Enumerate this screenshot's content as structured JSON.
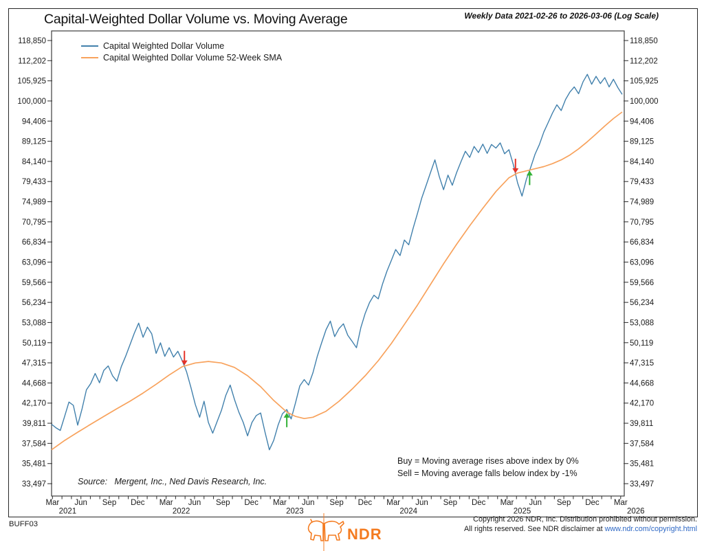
{
  "header": {
    "title": "Capital-Weighted Dollar Volume vs. Moving Average",
    "subtitle": "Weekly Data 2021-02-26 to 2026-03-06 (Log Scale)"
  },
  "legend": [
    {
      "label": "Capital Weighted Dollar Volume",
      "color": "#4180ac"
    },
    {
      "label": "Capital Weighted Dollar Volume 52-Week SMA",
      "color": "#f8a25c"
    }
  ],
  "annotations": {
    "source": "Source:   Mergent, Inc., Ned Davis Research, Inc.",
    "buy_rule": "Buy = Moving average rises above index by 0%",
    "sell_rule": "Sell = Moving average falls below index by -1%"
  },
  "footer": {
    "doc_code": "BUFF03",
    "logo_text": "NDR",
    "copyright_line1": "Copyright 2026 NDR, Inc. Distribution prohibited without permission.",
    "copyright_line2_prefix": "All rights reserved. See NDR disclaimer at ",
    "copyright_link": "www.ndr.com/copyright.html"
  },
  "colors": {
    "index_line": "#4180ac",
    "sma_line": "#f8a25c",
    "buy_arrow": "#31b135",
    "sell_arrow": "#e53228",
    "ndr_orange": "#f47b20",
    "link_blue": "#2e68c5",
    "axis": "#3c3c3c",
    "text": "#1a1a1a"
  },
  "chart_data": {
    "type": "line",
    "title": "Capital-Weighted Dollar Volume vs. Moving Average",
    "log_scale": true,
    "x_unit": "weeks since 2021-02-26",
    "x_range_weeks": [
      0,
      262
    ],
    "y_ticks": [
      118850,
      112202,
      105925,
      100000,
      94406,
      89125,
      84140,
      79433,
      74989,
      70795,
      66834,
      63096,
      59566,
      56234,
      53088,
      50119,
      47315,
      44668,
      42170,
      39811,
      37584,
      35481,
      33497
    ],
    "x_ticks": [
      {
        "month": "Mar",
        "year": "2021"
      },
      {
        "month": "Jun"
      },
      {
        "month": "Sep"
      },
      {
        "month": "Dec"
      },
      {
        "month": "Mar",
        "year": "2022"
      },
      {
        "month": "Jun"
      },
      {
        "month": "Sep"
      },
      {
        "month": "Dec"
      },
      {
        "month": "Mar",
        "year": "2023"
      },
      {
        "month": "Jun"
      },
      {
        "month": "Sep"
      },
      {
        "month": "Dec"
      },
      {
        "month": "Mar",
        "year": "2024"
      },
      {
        "month": "Jun"
      },
      {
        "month": "Sep"
      },
      {
        "month": "Dec"
      },
      {
        "month": "Mar",
        "year": "2025"
      },
      {
        "month": "Jun"
      },
      {
        "month": "Sep"
      },
      {
        "month": "Dec"
      },
      {
        "month": "Mar",
        "year": "2026"
      }
    ],
    "series": [
      {
        "name": "Capital Weighted Dollar Volume",
        "color": "#4180ac",
        "points": [
          [
            0,
            39700
          ],
          [
            2,
            39300
          ],
          [
            4,
            39000
          ],
          [
            6,
            40600
          ],
          [
            8,
            42300
          ],
          [
            10,
            41900
          ],
          [
            12,
            39600
          ],
          [
            14,
            41500
          ],
          [
            16,
            43800
          ],
          [
            18,
            44600
          ],
          [
            20,
            45900
          ],
          [
            22,
            44700
          ],
          [
            24,
            46300
          ],
          [
            26,
            46900
          ],
          [
            28,
            45600
          ],
          [
            30,
            44900
          ],
          [
            32,
            46800
          ],
          [
            34,
            48200
          ],
          [
            36,
            49800
          ],
          [
            38,
            51500
          ],
          [
            40,
            53000
          ],
          [
            42,
            50900
          ],
          [
            44,
            52400
          ],
          [
            46,
            51400
          ],
          [
            48,
            48600
          ],
          [
            50,
            50100
          ],
          [
            52,
            48200
          ],
          [
            54,
            49400
          ],
          [
            56,
            48100
          ],
          [
            58,
            48900
          ],
          [
            60,
            47600
          ],
          [
            62,
            46100
          ],
          [
            64,
            44100
          ],
          [
            66,
            42000
          ],
          [
            68,
            40500
          ],
          [
            70,
            42400
          ],
          [
            72,
            39900
          ],
          [
            74,
            38700
          ],
          [
            76,
            40000
          ],
          [
            78,
            41300
          ],
          [
            80,
            43100
          ],
          [
            82,
            44400
          ],
          [
            84,
            42600
          ],
          [
            86,
            41100
          ],
          [
            88,
            39900
          ],
          [
            90,
            38400
          ],
          [
            92,
            39900
          ],
          [
            94,
            40700
          ],
          [
            96,
            41000
          ],
          [
            98,
            38800
          ],
          [
            100,
            36900
          ],
          [
            102,
            37900
          ],
          [
            104,
            39600
          ],
          [
            106,
            40900
          ],
          [
            108,
            41400
          ],
          [
            110,
            40300
          ],
          [
            112,
            42200
          ],
          [
            114,
            44300
          ],
          [
            116,
            45100
          ],
          [
            118,
            44400
          ],
          [
            120,
            46000
          ],
          [
            122,
            48200
          ],
          [
            124,
            50100
          ],
          [
            126,
            52000
          ],
          [
            128,
            53300
          ],
          [
            130,
            51000
          ],
          [
            132,
            52200
          ],
          [
            134,
            52900
          ],
          [
            136,
            51200
          ],
          [
            138,
            50300
          ],
          [
            140,
            49400
          ],
          [
            142,
            52300
          ],
          [
            144,
            54500
          ],
          [
            146,
            56200
          ],
          [
            148,
            57400
          ],
          [
            150,
            56800
          ],
          [
            152,
            59300
          ],
          [
            154,
            61500
          ],
          [
            156,
            63400
          ],
          [
            158,
            65400
          ],
          [
            160,
            64300
          ],
          [
            162,
            67200
          ],
          [
            164,
            66300
          ],
          [
            166,
            69500
          ],
          [
            168,
            72500
          ],
          [
            170,
            75800
          ],
          [
            172,
            78600
          ],
          [
            174,
            81500
          ],
          [
            176,
            84500
          ],
          [
            178,
            80600
          ],
          [
            180,
            77600
          ],
          [
            182,
            80900
          ],
          [
            184,
            78600
          ],
          [
            186,
            81500
          ],
          [
            188,
            84100
          ],
          [
            190,
            86600
          ],
          [
            192,
            85100
          ],
          [
            194,
            87800
          ],
          [
            196,
            86300
          ],
          [
            198,
            88400
          ],
          [
            200,
            86100
          ],
          [
            202,
            88300
          ],
          [
            204,
            87400
          ],
          [
            206,
            88700
          ],
          [
            208,
            86000
          ],
          [
            210,
            87000
          ],
          [
            212,
            83400
          ],
          [
            214,
            79100
          ],
          [
            216,
            76200
          ],
          [
            218,
            79900
          ],
          [
            220,
            82700
          ],
          [
            222,
            85900
          ],
          [
            224,
            88300
          ],
          [
            226,
            91500
          ],
          [
            228,
            94000
          ],
          [
            230,
            96600
          ],
          [
            232,
            98900
          ],
          [
            234,
            97300
          ],
          [
            236,
            100400
          ],
          [
            238,
            102600
          ],
          [
            240,
            104100
          ],
          [
            242,
            102100
          ],
          [
            244,
            105600
          ],
          [
            246,
            107900
          ],
          [
            248,
            104900
          ],
          [
            250,
            107300
          ],
          [
            252,
            105100
          ],
          [
            254,
            106900
          ],
          [
            256,
            104100
          ],
          [
            258,
            106400
          ],
          [
            260,
            103900
          ],
          [
            262,
            101900
          ]
        ]
      },
      {
        "name": "Capital Weighted Dollar Volume 52-Week SMA",
        "color": "#f8a25c",
        "points": [
          [
            0,
            36900
          ],
          [
            6,
            37900
          ],
          [
            12,
            38800
          ],
          [
            18,
            39700
          ],
          [
            24,
            40600
          ],
          [
            30,
            41500
          ],
          [
            36,
            42400
          ],
          [
            42,
            43400
          ],
          [
            48,
            44500
          ],
          [
            54,
            45700
          ],
          [
            60,
            46800
          ],
          [
            66,
            47300
          ],
          [
            72,
            47500
          ],
          [
            78,
            47300
          ],
          [
            84,
            46700
          ],
          [
            90,
            45600
          ],
          [
            96,
            44200
          ],
          [
            102,
            42500
          ],
          [
            108,
            41100
          ],
          [
            112,
            40600
          ],
          [
            116,
            40350
          ],
          [
            120,
            40500
          ],
          [
            126,
            41200
          ],
          [
            132,
            42400
          ],
          [
            138,
            43900
          ],
          [
            144,
            45600
          ],
          [
            150,
            47600
          ],
          [
            156,
            50000
          ],
          [
            162,
            52800
          ],
          [
            168,
            55800
          ],
          [
            174,
            59200
          ],
          [
            180,
            62800
          ],
          [
            186,
            66400
          ],
          [
            192,
            70000
          ],
          [
            198,
            73600
          ],
          [
            204,
            77200
          ],
          [
            210,
            80300
          ],
          [
            214,
            81400
          ],
          [
            218,
            81900
          ],
          [
            222,
            82400
          ],
          [
            226,
            82900
          ],
          [
            230,
            83600
          ],
          [
            234,
            84500
          ],
          [
            238,
            85700
          ],
          [
            242,
            87200
          ],
          [
            246,
            89000
          ],
          [
            250,
            91000
          ],
          [
            254,
            93100
          ],
          [
            258,
            95100
          ],
          [
            262,
            96900
          ]
        ]
      }
    ],
    "signals": [
      {
        "type": "sell",
        "t": 61,
        "value": 46900
      },
      {
        "type": "buy",
        "t": 108,
        "value": 41100
      },
      {
        "type": "sell",
        "t": 213,
        "value": 81200
      },
      {
        "type": "buy",
        "t": 219.5,
        "value": 82100
      }
    ]
  }
}
